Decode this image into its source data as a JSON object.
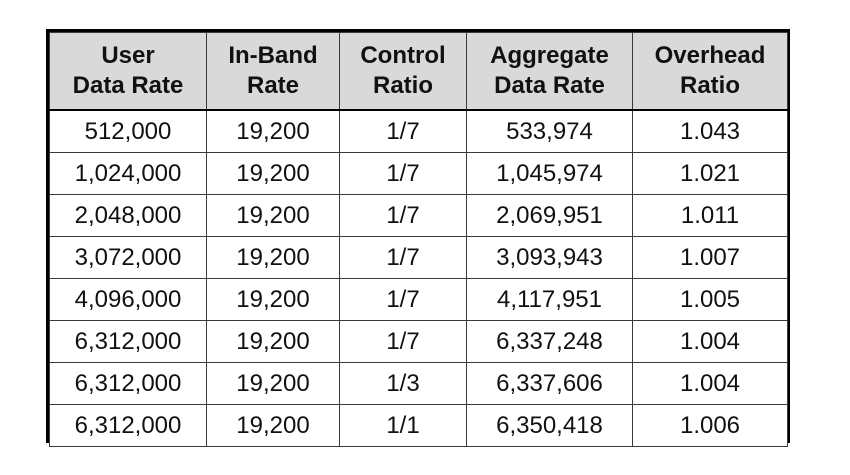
{
  "table": {
    "headers": [
      {
        "line1": "User",
        "line2": "Data Rate"
      },
      {
        "line1": "In-Band",
        "line2": "Rate"
      },
      {
        "line1": "Control",
        "line2": "Ratio"
      },
      {
        "line1": "Aggregate",
        "line2": "Data Rate"
      },
      {
        "line1": "Overhead",
        "line2": "Ratio"
      }
    ],
    "rows": [
      [
        "512,000",
        "19,200",
        "1/7",
        "533,974",
        "1.043"
      ],
      [
        "1,024,000",
        "19,200",
        "1/7",
        "1,045,974",
        "1.021"
      ],
      [
        "2,048,000",
        "19,200",
        "1/7",
        "2,069,951",
        "1.011"
      ],
      [
        "3,072,000",
        "19,200",
        "1/7",
        "3,093,943",
        "1.007"
      ],
      [
        "4,096,000",
        "19,200",
        "1/7",
        "4,117,951",
        "1.005"
      ],
      [
        "6,312,000",
        "19,200",
        "1/7",
        "6,337,248",
        "1.004"
      ],
      [
        "6,312,000",
        "19,200",
        "1/3",
        "6,337,606",
        "1.004"
      ],
      [
        "6,312,000",
        "19,200",
        "1/1",
        "6,350,418",
        "1.006"
      ]
    ]
  }
}
